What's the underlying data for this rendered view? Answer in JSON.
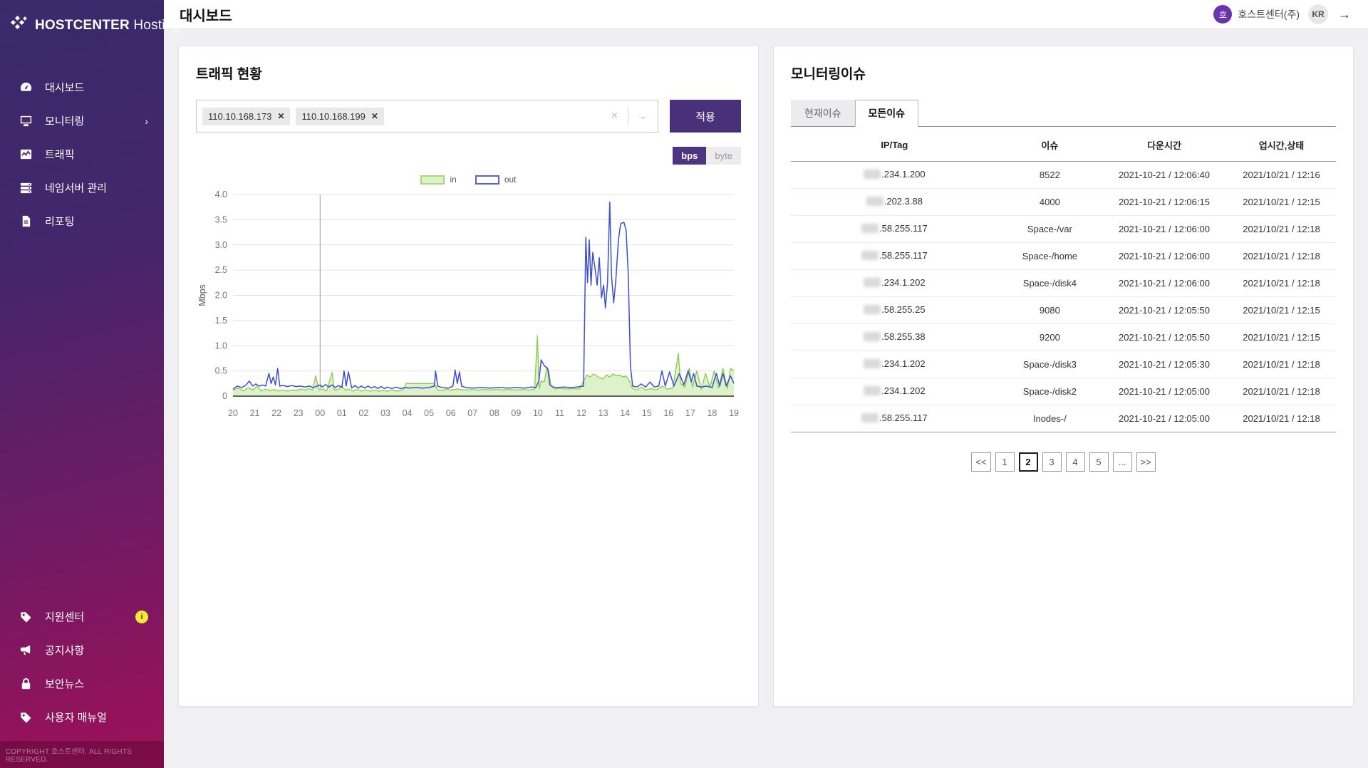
{
  "app": {
    "brand_bold": "HOSTCENTER",
    "brand_light": "Hosting",
    "copyright": "COPYRIGHT 호스트센터. ALL RIGHTS RESERVED."
  },
  "header": {
    "title": "대시보드",
    "avatar_initial": "호",
    "account_name": "호스트센터(주)",
    "locale": "KR"
  },
  "sidebar": {
    "items": [
      {
        "label": "대시보드",
        "icon": "gauge-icon"
      },
      {
        "label": "모니터링",
        "icon": "monitor-icon",
        "chevron": "›"
      },
      {
        "label": "트래픽",
        "icon": "line-chart-icon"
      },
      {
        "label": "네임서버 관리",
        "icon": "server-icon"
      },
      {
        "label": "리포팅",
        "icon": "document-icon"
      }
    ],
    "footer_items": [
      {
        "label": "지원센터",
        "icon": "tag-icon",
        "badge": "i"
      },
      {
        "label": "공지사항",
        "icon": "megaphone-icon"
      },
      {
        "label": "보안뉴스",
        "icon": "lock-icon"
      },
      {
        "label": "사용자 매뉴얼",
        "icon": "tag-icon"
      }
    ]
  },
  "traffic": {
    "title": "트래픽 현황",
    "tags": [
      "110.10.168.173",
      "110.10.168.199"
    ],
    "clear_icon": "×",
    "caret_icon": "⌄",
    "apply_label": "적용",
    "unit_options": [
      "bps",
      "byte"
    ],
    "unit_selected": "bps",
    "legend_in": "in",
    "legend_out": "out"
  },
  "chart_data": {
    "type": "area",
    "title": "트래픽 현황 (in/out)",
    "xlabel": "",
    "ylabel": "Mbps",
    "ylim": [
      0,
      4.0
    ],
    "ytick_step": 0.5,
    "grid": true,
    "legend_position": "top",
    "categories": [
      "20",
      "21",
      "22",
      "23",
      "00",
      "01",
      "02",
      "03",
      "04",
      "05",
      "06",
      "07",
      "08",
      "09",
      "10",
      "11",
      "12",
      "13",
      "14",
      "15",
      "16",
      "17",
      "18",
      "19"
    ],
    "day_divider_at": "00",
    "colors": {
      "in_stroke": "#8fcc52",
      "in_fill": "#ddf2c8",
      "out_stroke": "#3d4fd0",
      "axis": "#444444",
      "grid": "#e2e2e2",
      "divider": "#9b9b9b",
      "tick_text": "#777777"
    },
    "series": [
      {
        "name": "in",
        "style": "area",
        "points": [
          [
            0,
            0.12
          ],
          [
            0.25,
            0.16
          ],
          [
            0.5,
            0.1
          ],
          [
            0.7,
            0.17
          ],
          [
            0.9,
            0.12
          ],
          [
            1.1,
            0.2
          ],
          [
            1.3,
            0.1
          ],
          [
            1.5,
            0.14
          ],
          [
            1.7,
            0.11
          ],
          [
            1.9,
            0.13
          ],
          [
            2.1,
            0.1
          ],
          [
            2.3,
            0.12
          ],
          [
            2.5,
            0.1
          ],
          [
            2.7,
            0.12
          ],
          [
            2.9,
            0.11
          ],
          [
            3.1,
            0.14
          ],
          [
            3.3,
            0.12
          ],
          [
            3.5,
            0.15
          ],
          [
            3.65,
            0.12
          ],
          [
            3.8,
            0.4
          ],
          [
            3.95,
            0.12
          ],
          [
            4.15,
            0.14
          ],
          [
            4.3,
            0.1
          ],
          [
            4.55,
            0.47
          ],
          [
            4.65,
            0.12
          ],
          [
            4.85,
            0.14
          ],
          [
            5,
            0.2
          ],
          [
            5.15,
            0.12
          ],
          [
            5.3,
            0.14
          ],
          [
            5.5,
            0.1
          ],
          [
            5.7,
            0.13
          ],
          [
            5.9,
            0.1
          ],
          [
            6.1,
            0.12
          ],
          [
            6.3,
            0.1
          ],
          [
            6.5,
            0.12
          ],
          [
            6.7,
            0.1
          ],
          [
            6.9,
            0.11
          ],
          [
            7.1,
            0.1
          ],
          [
            7.3,
            0.12
          ],
          [
            7.5,
            0.1
          ],
          [
            7.7,
            0.11
          ],
          [
            7.85,
            0.14
          ],
          [
            7.95,
            0.25
          ],
          [
            9.25,
            0.25
          ],
          [
            9.4,
            0.12
          ],
          [
            9.6,
            0.11
          ],
          [
            9.8,
            0.14
          ],
          [
            10,
            0.12
          ],
          [
            10.3,
            0.14
          ],
          [
            10.6,
            0.12
          ],
          [
            10.9,
            0.13
          ],
          [
            11.2,
            0.12
          ],
          [
            11.5,
            0.13
          ],
          [
            11.8,
            0.12
          ],
          [
            12.1,
            0.13
          ],
          [
            12.4,
            0.12
          ],
          [
            12.7,
            0.13
          ],
          [
            13,
            0.12
          ],
          [
            13.3,
            0.13
          ],
          [
            13.6,
            0.12
          ],
          [
            13.85,
            0.14
          ],
          [
            13.98,
            1.2
          ],
          [
            14.06,
            0.15
          ],
          [
            14.15,
            0.3
          ],
          [
            14.3,
            0.28
          ],
          [
            14.4,
            0.55
          ],
          [
            14.5,
            0.5
          ],
          [
            14.6,
            0.2
          ],
          [
            14.8,
            0.14
          ],
          [
            15,
            0.16
          ],
          [
            15.3,
            0.14
          ],
          [
            15.6,
            0.15
          ],
          [
            15.9,
            0.14
          ],
          [
            16.1,
            0.3
          ],
          [
            16.25,
            0.42
          ],
          [
            16.4,
            0.38
          ],
          [
            16.55,
            0.44
          ],
          [
            16.7,
            0.4
          ],
          [
            16.85,
            0.36
          ],
          [
            17,
            0.34
          ],
          [
            17.15,
            0.42
          ],
          [
            17.3,
            0.38
          ],
          [
            17.45,
            0.44
          ],
          [
            17.6,
            0.4
          ],
          [
            17.75,
            0.42
          ],
          [
            17.9,
            0.38
          ],
          [
            18.05,
            0.4
          ],
          [
            18.2,
            0.3
          ],
          [
            18.35,
            0.15
          ],
          [
            18.55,
            0.12
          ],
          [
            18.75,
            0.18
          ],
          [
            18.95,
            0.12
          ],
          [
            19.2,
            0.15
          ],
          [
            19.45,
            0.12
          ],
          [
            19.7,
            0.2
          ],
          [
            19.95,
            0.14
          ],
          [
            20.2,
            0.16
          ],
          [
            20.45,
            0.85
          ],
          [
            20.55,
            0.25
          ],
          [
            20.75,
            0.18
          ],
          [
            20.95,
            0.55
          ],
          [
            21.1,
            0.18
          ],
          [
            21.3,
            0.5
          ],
          [
            21.5,
            0.14
          ],
          [
            21.7,
            0.45
          ],
          [
            21.9,
            0.18
          ],
          [
            22.1,
            0.5
          ],
          [
            22.3,
            0.16
          ],
          [
            22.5,
            0.55
          ],
          [
            22.7,
            0.15
          ],
          [
            22.85,
            0.55
          ],
          [
            23,
            0.5
          ]
        ]
      },
      {
        "name": "out",
        "style": "line",
        "points": [
          [
            0,
            0.14
          ],
          [
            0.2,
            0.2
          ],
          [
            0.4,
            0.17
          ],
          [
            0.6,
            0.22
          ],
          [
            0.75,
            0.3
          ],
          [
            0.9,
            0.2
          ],
          [
            1.05,
            0.24
          ],
          [
            1.2,
            0.2
          ],
          [
            1.35,
            0.22
          ],
          [
            1.5,
            0.2
          ],
          [
            1.65,
            0.45
          ],
          [
            1.75,
            0.25
          ],
          [
            1.85,
            0.38
          ],
          [
            1.95,
            0.22
          ],
          [
            2.05,
            0.55
          ],
          [
            2.15,
            0.2
          ],
          [
            2.3,
            0.21
          ],
          [
            2.5,
            0.19
          ],
          [
            2.7,
            0.21
          ],
          [
            2.9,
            0.19
          ],
          [
            3.1,
            0.2
          ],
          [
            3.3,
            0.18
          ],
          [
            3.5,
            0.2
          ],
          [
            3.7,
            0.17
          ],
          [
            3.85,
            0.2
          ],
          [
            4,
            0.22
          ],
          [
            4.1,
            0.18
          ],
          [
            4.25,
            0.23
          ],
          [
            4.4,
            0.18
          ],
          [
            4.55,
            0.22
          ],
          [
            4.7,
            0.17
          ],
          [
            4.85,
            0.21
          ],
          [
            5,
            0.17
          ],
          [
            5.1,
            0.5
          ],
          [
            5.2,
            0.2
          ],
          [
            5.3,
            0.48
          ],
          [
            5.45,
            0.16
          ],
          [
            5.6,
            0.21
          ],
          [
            5.75,
            0.16
          ],
          [
            5.9,
            0.2
          ],
          [
            6.05,
            0.16
          ],
          [
            6.2,
            0.2
          ],
          [
            6.35,
            0.16
          ],
          [
            6.5,
            0.19
          ],
          [
            6.65,
            0.15
          ],
          [
            6.8,
            0.19
          ],
          [
            6.95,
            0.15
          ],
          [
            7.1,
            0.18
          ],
          [
            7.3,
            0.15
          ],
          [
            7.5,
            0.18
          ],
          [
            7.7,
            0.15
          ],
          [
            7.9,
            0.17
          ],
          [
            8.1,
            0.16
          ],
          [
            8.4,
            0.17
          ],
          [
            8.7,
            0.16
          ],
          [
            9,
            0.17
          ],
          [
            9.25,
            0.2
          ],
          [
            9.3,
            0.5
          ],
          [
            9.4,
            0.2
          ],
          [
            9.6,
            0.17
          ],
          [
            9.9,
            0.16
          ],
          [
            10.1,
            0.2
          ],
          [
            10.2,
            0.52
          ],
          [
            10.3,
            0.25
          ],
          [
            10.4,
            0.48
          ],
          [
            10.5,
            0.2
          ],
          [
            10.7,
            0.17
          ],
          [
            11,
            0.16
          ],
          [
            11.4,
            0.17
          ],
          [
            11.8,
            0.16
          ],
          [
            12.2,
            0.17
          ],
          [
            12.6,
            0.16
          ],
          [
            13,
            0.17
          ],
          [
            13.4,
            0.16
          ],
          [
            13.7,
            0.18
          ],
          [
            13.9,
            0.17
          ],
          [
            14.05,
            0.3
          ],
          [
            14.15,
            0.72
          ],
          [
            14.3,
            0.6
          ],
          [
            14.45,
            0.55
          ],
          [
            14.55,
            0.22
          ],
          [
            14.7,
            0.18
          ],
          [
            14.9,
            0.17
          ],
          [
            15.2,
            0.18
          ],
          [
            15.5,
            0.17
          ],
          [
            15.8,
            0.18
          ],
          [
            16.1,
            0.2
          ],
          [
            16.2,
            3.15
          ],
          [
            16.28,
            2.25
          ],
          [
            16.36,
            3.1
          ],
          [
            16.44,
            2.2
          ],
          [
            16.52,
            2.85
          ],
          [
            16.62,
            2.55
          ],
          [
            16.72,
            2.2
          ],
          [
            16.82,
            2.75
          ],
          [
            16.92,
            1.95
          ],
          [
            17.02,
            2.2
          ],
          [
            17.1,
            1.75
          ],
          [
            17.2,
            2.25
          ],
          [
            17.3,
            3.85
          ],
          [
            17.38,
            2.4
          ],
          [
            17.48,
            1.85
          ],
          [
            17.58,
            2.3
          ],
          [
            17.7,
            3.1
          ],
          [
            17.8,
            3.42
          ],
          [
            17.95,
            3.45
          ],
          [
            18.05,
            3.3
          ],
          [
            18.15,
            2.4
          ],
          [
            18.25,
            0.6
          ],
          [
            18.35,
            0.2
          ],
          [
            18.55,
            0.18
          ],
          [
            18.75,
            0.24
          ],
          [
            18.95,
            0.18
          ],
          [
            19.15,
            0.28
          ],
          [
            19.35,
            0.18
          ],
          [
            19.55,
            0.2
          ],
          [
            19.7,
            0.5
          ],
          [
            19.85,
            0.2
          ],
          [
            20.05,
            0.48
          ],
          [
            20.25,
            0.2
          ],
          [
            20.5,
            0.45
          ],
          [
            20.7,
            0.22
          ],
          [
            20.9,
            0.5
          ],
          [
            21.05,
            0.28
          ],
          [
            21.15,
            0.45
          ],
          [
            21.3,
            0.2
          ],
          [
            21.5,
            0.18
          ],
          [
            21.75,
            0.2
          ],
          [
            22,
            0.17
          ],
          [
            22.2,
            0.45
          ],
          [
            22.35,
            0.2
          ],
          [
            22.5,
            0.45
          ],
          [
            22.65,
            0.2
          ],
          [
            22.85,
            0.4
          ],
          [
            23,
            0.25
          ]
        ]
      }
    ]
  },
  "monitoring": {
    "title": "모니터링이슈",
    "tabs": [
      {
        "label": "현재이슈",
        "active": false
      },
      {
        "label": "모든이슈",
        "active": true
      }
    ],
    "columns": [
      "IP/Tag",
      "이슈",
      "다운시간",
      "업시간,상태"
    ],
    "rows": [
      {
        "ip": ".234.1.200",
        "issue": "8522",
        "down": "2021-10-21 / 12:06:40",
        "up": "2021/10/21 / 12:16"
      },
      {
        "ip": ".202.3.88",
        "issue": "4000",
        "down": "2021-10-21 / 12:06:15",
        "up": "2021/10/21 / 12:15"
      },
      {
        "ip": ".58.255.117",
        "issue": "Space-/var",
        "down": "2021-10-21 / 12:06:00",
        "up": "2021/10/21 / 12:18"
      },
      {
        "ip": ".58.255.117",
        "issue": "Space-/home",
        "down": "2021-10-21 / 12:06:00",
        "up": "2021/10/21 / 12:18"
      },
      {
        "ip": ".234.1.202",
        "issue": "Space-/disk4",
        "down": "2021-10-21 / 12:06:00",
        "up": "2021/10/21 / 12:18"
      },
      {
        "ip": ".58.255.25",
        "issue": "9080",
        "down": "2021-10-21 / 12:05:50",
        "up": "2021/10/21 / 12:15"
      },
      {
        "ip": ".58.255.38",
        "issue": "9200",
        "down": "2021-10-21 / 12:05:50",
        "up": "2021/10/21 / 12:15"
      },
      {
        "ip": ".234.1.202",
        "issue": "Space-/disk3",
        "down": "2021-10-21 / 12:05:30",
        "up": "2021/10/21 / 12:18"
      },
      {
        "ip": ".234.1.202",
        "issue": "Space-/disk2",
        "down": "2021-10-21 / 12:05:00",
        "up": "2021/10/21 / 12:18"
      },
      {
        "ip": ".58.255.117",
        "issue": "Inodes-/",
        "down": "2021-10-21 / 12:05:00",
        "up": "2021/10/21 / 12:18"
      }
    ],
    "pagination": {
      "prev": "<<",
      "pages": [
        "1",
        "2",
        "3",
        "4",
        "5",
        "..."
      ],
      "active": "2",
      "next": ">>"
    }
  }
}
